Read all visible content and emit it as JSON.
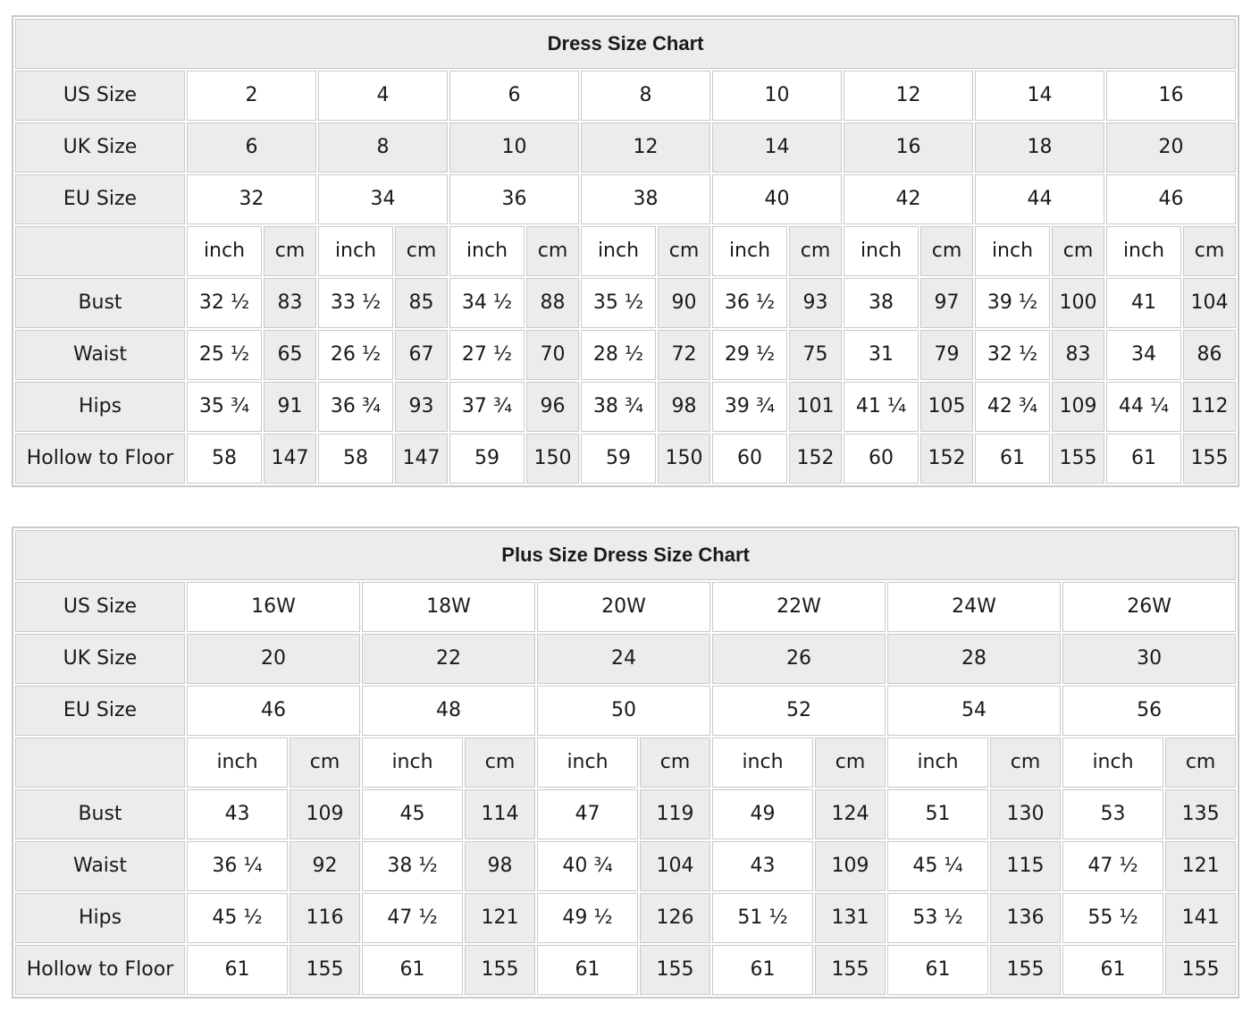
{
  "page": {
    "background_color": "#ffffff",
    "cell_shade_color": "#ececec",
    "grid_line_color": "#c9c9c9",
    "text_color": "#1a1a1a"
  },
  "chart_data": [
    {
      "type": "table",
      "title": "Dress Size Chart",
      "layout": {
        "columns": 17,
        "label_width": 190,
        "inch_width": 84,
        "cm_width": 59,
        "grid": true
      },
      "header_rows": [
        {
          "label": "US Size",
          "shaded": false,
          "values": [
            "2",
            "4",
            "6",
            "8",
            "10",
            "12",
            "14",
            "16"
          ]
        },
        {
          "label": "UK Size",
          "shaded": true,
          "values": [
            "6",
            "8",
            "10",
            "12",
            "14",
            "16",
            "18",
            "20"
          ]
        },
        {
          "label": "EU Size",
          "shaded": false,
          "values": [
            "32",
            "34",
            "36",
            "38",
            "40",
            "42",
            "44",
            "46"
          ]
        }
      ],
      "unit_row": {
        "label": "",
        "inch_label": "inch",
        "cm_label": "cm"
      },
      "body_rows": [
        {
          "label": "Bust",
          "inch": [
            "32 ½",
            "33 ½",
            "34 ½",
            "35 ½",
            "36 ½",
            "38",
            "39 ½",
            "41"
          ],
          "cm": [
            "83",
            "85",
            "88",
            "90",
            "93",
            "97",
            "100",
            "104"
          ]
        },
        {
          "label": "Waist",
          "inch": [
            "25 ½",
            "26 ½",
            "27 ½",
            "28 ½",
            "29 ½",
            "31",
            "32 ½",
            "34"
          ],
          "cm": [
            "65",
            "67",
            "70",
            "72",
            "75",
            "79",
            "83",
            "86"
          ]
        },
        {
          "label": "Hips",
          "inch": [
            "35 ¾",
            "36 ¾",
            "37 ¾",
            "38 ¾",
            "39 ¾",
            "41 ¼",
            "42 ¾",
            "44 ¼"
          ],
          "cm": [
            "91",
            "93",
            "96",
            "98",
            "101",
            "105",
            "109",
            "112"
          ]
        },
        {
          "label": "Hollow to Floor",
          "inch": [
            "58",
            "58",
            "59",
            "59",
            "60",
            "60",
            "61",
            "61"
          ],
          "cm": [
            "147",
            "147",
            "150",
            "150",
            "152",
            "152",
            "155",
            "155"
          ]
        }
      ]
    },
    {
      "type": "table",
      "title": "Plus Size Dress Size Chart",
      "layout": {
        "columns": 13,
        "label_width": 190,
        "inch_width": 113,
        "cm_width": 79,
        "grid": true
      },
      "header_rows": [
        {
          "label": "US Size",
          "shaded": false,
          "values": [
            "16W",
            "18W",
            "20W",
            "22W",
            "24W",
            "26W"
          ]
        },
        {
          "label": "UK Size",
          "shaded": true,
          "values": [
            "20",
            "22",
            "24",
            "26",
            "28",
            "30"
          ]
        },
        {
          "label": "EU Size",
          "shaded": false,
          "values": [
            "46",
            "48",
            "50",
            "52",
            "54",
            "56"
          ]
        }
      ],
      "unit_row": {
        "label": "",
        "inch_label": "inch",
        "cm_label": "cm"
      },
      "body_rows": [
        {
          "label": "Bust",
          "inch": [
            "43",
            "45",
            "47",
            "49",
            "51",
            "53"
          ],
          "cm": [
            "109",
            "114",
            "119",
            "124",
            "130",
            "135"
          ]
        },
        {
          "label": "Waist",
          "inch": [
            "36 ¼",
            "38 ½",
            "40 ¾",
            "43",
            "45 ¼",
            "47 ½"
          ],
          "cm": [
            "92",
            "98",
            "104",
            "109",
            "115",
            "121"
          ]
        },
        {
          "label": "Hips",
          "inch": [
            "45 ½",
            "47 ½",
            "49 ½",
            "51 ½",
            "53 ½",
            "55 ½"
          ],
          "cm": [
            "116",
            "121",
            "126",
            "131",
            "136",
            "141"
          ]
        },
        {
          "label": "Hollow to Floor",
          "inch": [
            "61",
            "61",
            "61",
            "61",
            "61",
            "61"
          ],
          "cm": [
            "155",
            "155",
            "155",
            "155",
            "155",
            "155"
          ]
        }
      ]
    }
  ]
}
